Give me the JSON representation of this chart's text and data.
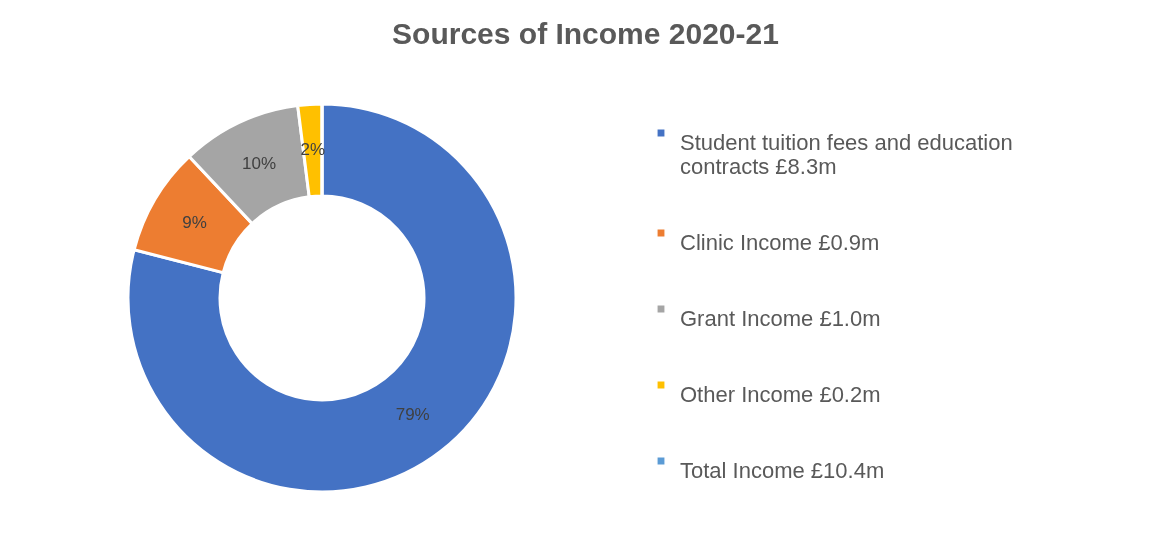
{
  "chart_data": {
    "type": "donut",
    "title": "Sources of Income 2020-21",
    "categories": [
      "Student tuition fees and education contracts £8.3m",
      "Clinic Income £0.9m",
      "Grant Income £1.0m",
      "Other Income £0.2m",
      "Total Income £10.4m"
    ],
    "values": [
      79,
      9,
      10,
      2,
      0
    ],
    "colors": [
      "#4472c4",
      "#ed7d31",
      "#a5a5a5",
      "#ffc000",
      "#5b9bd5"
    ],
    "value_labels": [
      "79%",
      "9%",
      "10%",
      "2%",
      null
    ],
    "legend": "right"
  }
}
